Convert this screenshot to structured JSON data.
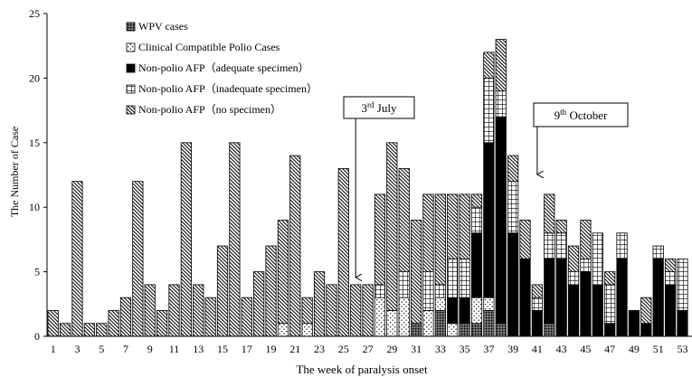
{
  "chart_data": {
    "type": "bar",
    "stacked": true,
    "xlabel": "The week of paralysis onset",
    "ylabel": "The Number of Case",
    "ylim": [
      0,
      25
    ],
    "yticks": [
      0,
      5,
      10,
      15,
      20,
      25
    ],
    "xlim": [
      1,
      55
    ],
    "xticks": [
      1,
      3,
      5,
      7,
      9,
      11,
      13,
      15,
      17,
      19,
      21,
      23,
      25,
      27,
      29,
      31,
      33,
      35,
      37,
      39,
      41,
      43,
      45,
      47,
      49,
      51,
      53
    ],
    "xtick_labels": [
      "1",
      "3",
      "5",
      "7",
      "9",
      "11",
      "13",
      "15",
      "17",
      "19",
      "21",
      "23",
      "25",
      "27",
      "29",
      "31",
      "33",
      "35",
      "37",
      "39",
      "41",
      "43",
      "45",
      "47",
      "49",
      "51",
      "53"
    ],
    "legend": "top-left",
    "x": [
      1,
      2,
      3,
      4,
      5,
      6,
      7,
      8,
      9,
      10,
      11,
      12,
      13,
      14,
      15,
      16,
      17,
      18,
      19,
      20,
      21,
      22,
      23,
      24,
      25,
      26,
      27,
      28,
      29,
      30,
      31,
      32,
      33,
      34,
      35,
      36,
      37,
      38,
      39,
      40,
      41,
      42,
      43,
      44,
      45,
      46,
      47,
      48,
      49,
      50,
      51,
      52,
      53
    ],
    "series": [
      {
        "name": "WPV cases",
        "pattern": "dots-dense",
        "values": [
          0,
          0,
          0,
          0,
          0,
          0,
          0,
          0,
          0,
          0,
          0,
          0,
          0,
          0,
          0,
          0,
          0,
          0,
          0,
          0,
          0,
          0,
          0,
          0,
          0,
          0,
          0,
          0,
          0,
          0,
          1,
          0,
          2,
          0,
          1,
          1,
          2,
          1,
          0,
          0,
          0,
          1,
          0,
          0,
          0,
          0,
          0,
          0,
          0,
          0,
          0,
          0,
          0
        ]
      },
      {
        "name": "Clinical Compatible Polio Cases",
        "pattern": "dots",
        "values": [
          0,
          0,
          0,
          0,
          0,
          0,
          0,
          0,
          0,
          0,
          0,
          0,
          0,
          0,
          0,
          0,
          0,
          0,
          0,
          1,
          0,
          1,
          0,
          0,
          0,
          0,
          0,
          3,
          2,
          3,
          0,
          2,
          1,
          1,
          0,
          2,
          1,
          0,
          0,
          0,
          0,
          0,
          0,
          0,
          0,
          0,
          0,
          0,
          0,
          0,
          0,
          0,
          0
        ]
      },
      {
        "name": "Non-polio AFP（adequate specimen）",
        "pattern": "solid",
        "values": [
          0,
          0,
          0,
          0,
          0,
          0,
          0,
          0,
          0,
          0,
          0,
          0,
          0,
          0,
          0,
          0,
          0,
          0,
          0,
          0,
          0,
          0,
          0,
          0,
          0,
          0,
          0,
          0,
          0,
          0,
          0,
          0,
          0,
          2,
          2,
          5,
          12,
          16,
          8,
          6,
          2,
          5,
          6,
          4,
          5,
          4,
          1,
          6,
          2,
          1,
          6,
          4,
          2
        ]
      },
      {
        "name": "Non-polio AFP（inadequate specimen）",
        "pattern": "grid",
        "values": [
          0,
          0,
          0,
          0,
          0,
          0,
          0,
          0,
          0,
          0,
          0,
          0,
          0,
          0,
          0,
          0,
          0,
          0,
          0,
          0,
          0,
          0,
          0,
          0,
          0,
          0,
          0,
          1,
          0,
          2,
          0,
          3,
          1,
          3,
          3,
          2,
          5,
          2,
          4,
          0,
          1,
          2,
          2,
          1,
          1,
          4,
          3,
          2,
          0,
          0,
          1,
          1,
          4
        ]
      },
      {
        "name": "Non-polio AFP（no specimen）",
        "pattern": "hatch",
        "values": [
          2,
          1,
          12,
          1,
          1,
          2,
          3,
          12,
          4,
          2,
          4,
          15,
          4,
          3,
          7,
          15,
          3,
          5,
          7,
          8,
          14,
          2,
          5,
          4,
          13,
          4,
          4,
          7,
          13,
          8,
          8,
          6,
          7,
          5,
          5,
          1,
          2,
          4,
          2,
          3,
          1,
          3,
          1,
          2,
          3,
          0,
          1,
          0,
          0,
          2,
          0,
          1,
          0
        ]
      }
    ],
    "annotations": [
      {
        "label_main": "3",
        "label_sup": "rd",
        "label_rest": "July",
        "week": 26
      },
      {
        "label_main": "9",
        "label_sup": "th",
        "label_rest": "October",
        "week": 41
      }
    ]
  }
}
